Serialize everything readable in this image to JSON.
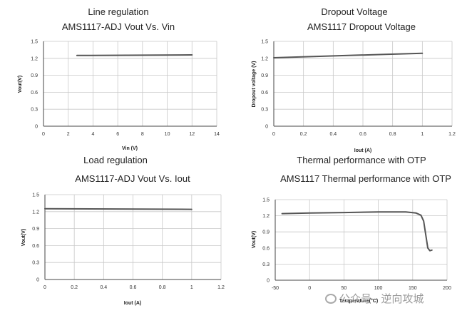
{
  "chart_data": [
    {
      "type": "line",
      "title": "Line regulation",
      "subtitle": "AMS1117-ADJ Vout Vs. Vin",
      "xlabel": "Vin (V)",
      "ylabel": "Vout(V)",
      "xlim": [
        0,
        14
      ],
      "ylim": [
        0,
        1.5
      ],
      "x_ticks": [
        "0",
        "2",
        "4",
        "6",
        "8",
        "10",
        "12",
        "14"
      ],
      "y_ticks": [
        "0",
        "0.3",
        "0.6",
        "0.9",
        "1.2",
        "1.5"
      ],
      "series": [
        {
          "name": "Vout",
          "x": [
            2.7,
            12
          ],
          "values": [
            1.25,
            1.26
          ]
        }
      ]
    },
    {
      "type": "line",
      "title": "Dropout Voltage",
      "subtitle": "AMS1117 Dropout Voltage",
      "xlabel": "Iout (A)",
      "ylabel": "Dropout voltage (V)",
      "xlim": [
        0,
        1.2
      ],
      "ylim": [
        0,
        1.5
      ],
      "x_ticks": [
        "0",
        "0.2",
        "0.4",
        "0.6",
        "0.8",
        "1",
        "1.2"
      ],
      "y_ticks": [
        "0",
        "0.3",
        "0.6",
        "0.9",
        "1.2",
        "1.5"
      ],
      "series": [
        {
          "name": "Dropout",
          "x": [
            0,
            0.25,
            0.5,
            0.75,
            1.0
          ],
          "values": [
            1.21,
            1.23,
            1.25,
            1.27,
            1.29
          ]
        }
      ]
    },
    {
      "type": "line",
      "title": "Load regulation",
      "subtitle": "AMS1117-ADJ Vout Vs. Iout",
      "xlabel": "Iout (A)",
      "ylabel": "Vout(V)",
      "xlim": [
        0,
        1.2
      ],
      "ylim": [
        0,
        1.5
      ],
      "x_ticks": [
        "0",
        "0.2",
        "0.4",
        "0.6",
        "0.8",
        "1",
        "1.2"
      ],
      "y_ticks": [
        "0",
        "0.3",
        "0.6",
        "0.9",
        "1.2",
        "1.5"
      ],
      "series": [
        {
          "name": "Vout",
          "x": [
            0,
            1.0
          ],
          "values": [
            1.25,
            1.24
          ]
        }
      ]
    },
    {
      "type": "line",
      "title": "Thermal performance with OTP",
      "subtitle": "AMS1117 Thermal performance with OTP",
      "xlabel": "Temperature(°C)",
      "ylabel": "Vout(V)",
      "xlim": [
        -50,
        200
      ],
      "ylim": [
        0,
        1.5
      ],
      "x_ticks": [
        "-50",
        "0",
        "50",
        "100",
        "150",
        "200"
      ],
      "y_ticks": [
        "0",
        "0.3",
        "0.6",
        "0.9",
        "1.2",
        "1.5"
      ],
      "series": [
        {
          "name": "Vout",
          "x": [
            -40,
            0,
            50,
            100,
            140,
            155,
            162,
            166,
            169,
            172,
            175,
            178
          ],
          "values": [
            1.24,
            1.25,
            1.26,
            1.27,
            1.27,
            1.25,
            1.21,
            1.1,
            0.85,
            0.6,
            0.55,
            0.56
          ]
        }
      ]
    }
  ],
  "watermark": {
    "text": "公众号 · 逆向攻城"
  }
}
